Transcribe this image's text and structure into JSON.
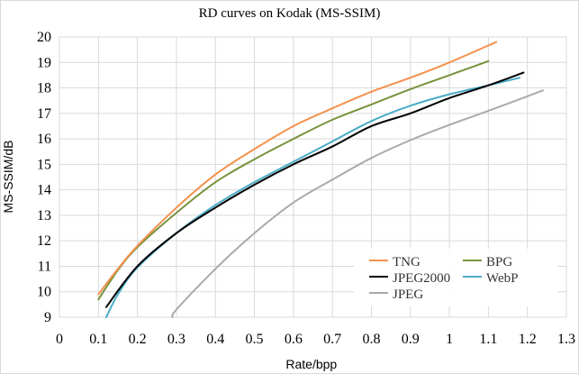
{
  "chart_data": {
    "type": "line",
    "title": "RD curves on Kodak (MS-SSIM)",
    "xlabel": "Rate/bpp",
    "ylabel": "MS-SSIM/dB",
    "xlim": [
      0,
      1.3
    ],
    "ylim": [
      9,
      20
    ],
    "xticks": [
      0,
      0.1,
      0.2,
      0.3,
      0.4,
      0.5,
      0.6,
      0.7,
      0.8,
      0.9,
      1,
      1.1,
      1.2,
      1.3
    ],
    "xtick_labels": [
      "0",
      "0.1",
      "0.2",
      "0.3",
      "0.4",
      "0.5",
      "0.6",
      "0.7",
      "0.8",
      "0.9",
      "1",
      "1.1",
      "1.2",
      "1.3"
    ],
    "yticks": [
      9,
      10,
      11,
      12,
      13,
      14,
      15,
      16,
      17,
      18,
      19,
      20
    ],
    "ytick_labels": [
      "9",
      "10",
      "11",
      "12",
      "13",
      "14",
      "15",
      "16",
      "17",
      "18",
      "19",
      "20"
    ],
    "grid": true,
    "legend_position": "bottom-right",
    "series": [
      {
        "name": "TNG",
        "color": "#f4914c",
        "x": [
          0.1,
          0.15,
          0.2,
          0.3,
          0.4,
          0.5,
          0.6,
          0.7,
          0.8,
          0.9,
          1.0,
          1.12
        ],
        "y": [
          9.9,
          10.9,
          11.8,
          13.3,
          14.6,
          15.6,
          16.5,
          17.2,
          17.85,
          18.4,
          19.0,
          19.8
        ]
      },
      {
        "name": "BPG",
        "color": "#77933c",
        "x": [
          0.1,
          0.15,
          0.2,
          0.3,
          0.4,
          0.5,
          0.6,
          0.7,
          0.8,
          0.9,
          1.0,
          1.1
        ],
        "y": [
          9.7,
          10.85,
          11.75,
          13.1,
          14.3,
          15.2,
          16.0,
          16.75,
          17.35,
          17.95,
          18.5,
          19.05
        ]
      },
      {
        "name": "JPEG2000",
        "color": "#000000",
        "x": [
          0.12,
          0.2,
          0.3,
          0.4,
          0.5,
          0.6,
          0.7,
          0.8,
          0.9,
          1.0,
          1.1,
          1.19
        ],
        "y": [
          9.4,
          11.0,
          12.3,
          13.3,
          14.2,
          15.0,
          15.7,
          16.5,
          17.0,
          17.6,
          18.1,
          18.6
        ]
      },
      {
        "name": "WebP",
        "color": "#4bacc6",
        "x": [
          0.12,
          0.15,
          0.2,
          0.3,
          0.4,
          0.5,
          0.6,
          0.7,
          0.8,
          0.9,
          1.0,
          1.1,
          1.18
        ],
        "y": [
          9.0,
          9.9,
          10.95,
          12.3,
          13.4,
          14.3,
          15.1,
          15.9,
          16.7,
          17.3,
          17.75,
          18.1,
          18.4
        ]
      },
      {
        "name": "JPEG",
        "color": "#aaaaaa",
        "x": [
          0.29,
          0.3,
          0.4,
          0.5,
          0.6,
          0.7,
          0.8,
          0.9,
          1.0,
          1.1,
          1.24
        ],
        "y": [
          9.0,
          9.3,
          10.9,
          12.3,
          13.5,
          14.4,
          15.25,
          15.95,
          16.55,
          17.1,
          17.9
        ]
      }
    ],
    "legend": {
      "left_column": [
        "TNG",
        "JPEG2000",
        "JPEG"
      ],
      "right_column": [
        "BPG",
        "WebP"
      ]
    }
  }
}
